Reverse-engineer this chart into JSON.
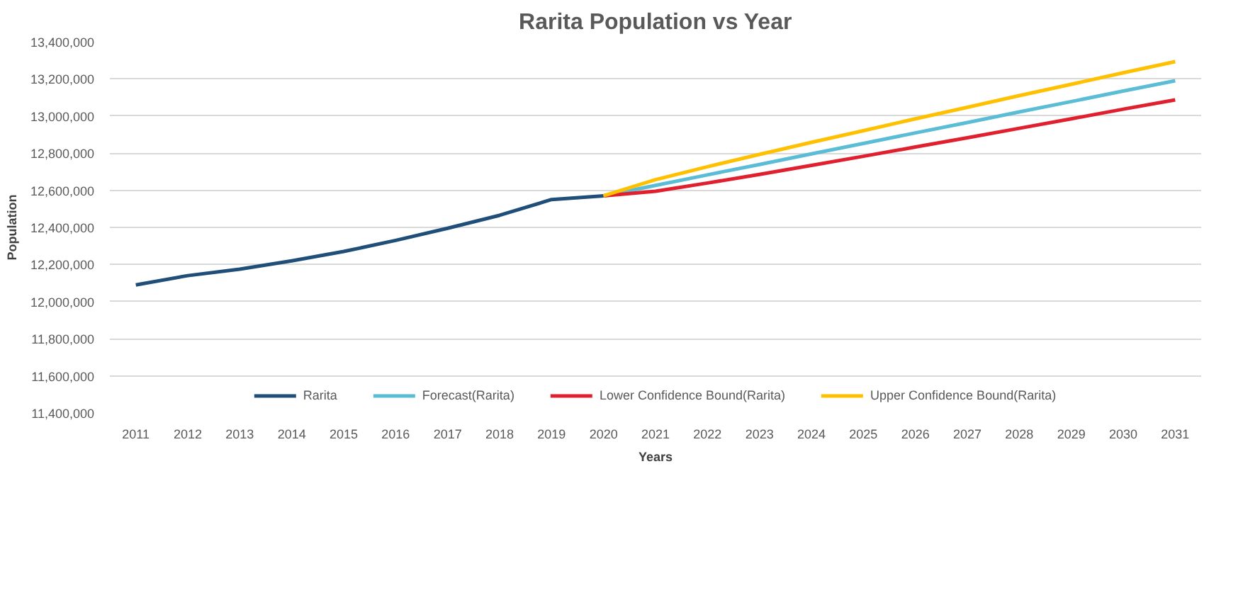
{
  "chart_data": {
    "type": "line",
    "title": "Rarita Population vs Year",
    "xlabel": "Years",
    "ylabel": "Population",
    "categories": [
      "2011",
      "2012",
      "2013",
      "2014",
      "2015",
      "2016",
      "2017",
      "2018",
      "2019",
      "2020",
      "2021",
      "2022",
      "2023",
      "2024",
      "2025",
      "2026",
      "2027",
      "2028",
      "2029",
      "2030",
      "2031"
    ],
    "series": [
      {
        "name": "Rarita",
        "color": "#1f4e79",
        "values": [
          12090000,
          12140000,
          12175000,
          12220000,
          12270000,
          12330000,
          12395000,
          12465000,
          12550000,
          12570000,
          null,
          null,
          null,
          null,
          null,
          null,
          null,
          null,
          null,
          null,
          null
        ]
      },
      {
        "name": "Forecast(Rarita)",
        "color": "#5bbcd6",
        "values": [
          null,
          null,
          null,
          null,
          null,
          null,
          null,
          null,
          null,
          12570000,
          12626000,
          12683000,
          12739000,
          12796000,
          12852000,
          12909000,
          12965000,
          13022000,
          13078000,
          13135000,
          13190000
        ]
      },
      {
        "name": "Lower Confidence Bound(Rarita)",
        "color": "#e0202e",
        "values": [
          null,
          null,
          null,
          null,
          null,
          null,
          null,
          null,
          null,
          12570000,
          12595000,
          12639000,
          12685000,
          12734000,
          12783000,
          12833000,
          12883000,
          12934000,
          12985000,
          13037000,
          13087000
        ]
      },
      {
        "name": "Upper Confidence Bound(Rarita)",
        "color": "#ffc000",
        "values": [
          null,
          null,
          null,
          null,
          null,
          null,
          null,
          null,
          null,
          12570000,
          12657000,
          12727000,
          12793000,
          12858000,
          12921000,
          12985000,
          13047000,
          13110000,
          13171000,
          13233000,
          13293000
        ]
      }
    ],
    "ylim": [
      11400000,
      13400000
    ],
    "yticks": [
      {
        "value": 11400000,
        "label": "11,400,000"
      },
      {
        "value": 11600000,
        "label": "11,600,000"
      },
      {
        "value": 11800000,
        "label": "11,800,000"
      },
      {
        "value": 12000000,
        "label": "12,000,000"
      },
      {
        "value": 12200000,
        "label": "12,200,000"
      },
      {
        "value": 12400000,
        "label": "12,400,000"
      },
      {
        "value": 12600000,
        "label": "12,600,000"
      },
      {
        "value": 12800000,
        "label": "12,800,000"
      },
      {
        "value": 13000000,
        "label": "13,000,000"
      },
      {
        "value": 13200000,
        "label": "13,200,000"
      },
      {
        "value": 13400000,
        "label": "13,400,000"
      }
    ],
    "grid": "y",
    "legend": "bottom",
    "marker": "none",
    "line_style": "solid"
  }
}
